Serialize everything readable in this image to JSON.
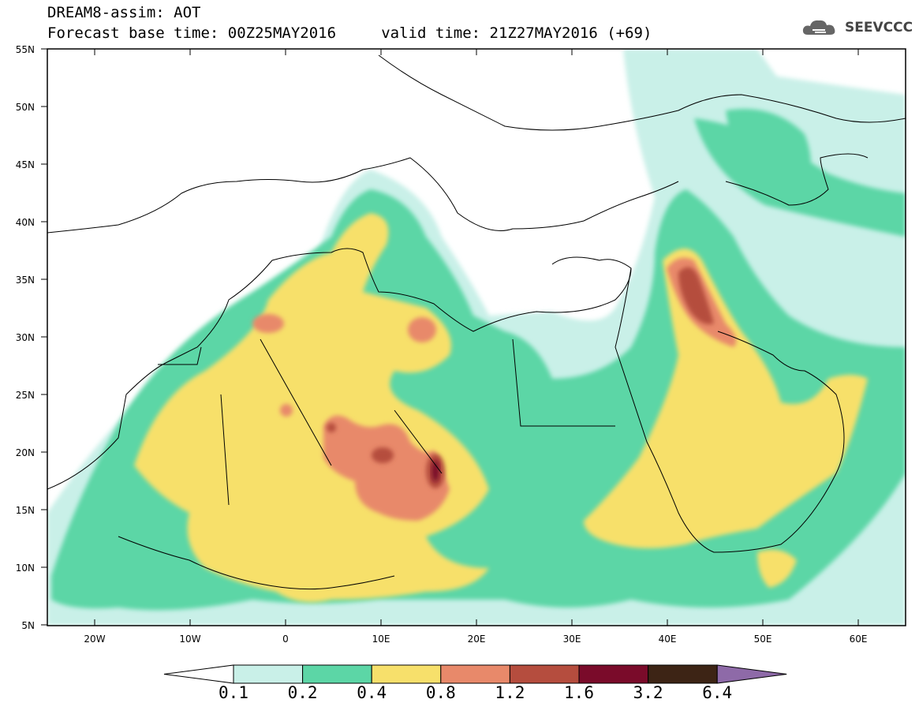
{
  "header": {
    "line1": "DREAM8-assim: AOT",
    "line2": "Forecast base time: 00Z25MAY2016     valid time: 21Z27MAY2016 (+69)"
  },
  "logo": {
    "text": "SEEVCCC",
    "icon": "cloud-icon"
  },
  "map": {
    "lon_range": [
      -25,
      65
    ],
    "lat_range": [
      5,
      55
    ],
    "lat_labels": [
      "55N",
      "50N",
      "45N",
      "40N",
      "35N",
      "30N",
      "25N",
      "20N",
      "15N",
      "10N",
      "5N"
    ],
    "lon_labels": [
      "20W",
      "10W",
      "0",
      "10E",
      "20E",
      "30E",
      "40E",
      "50E",
      "60E"
    ]
  },
  "colorbar": {
    "labels": [
      "0.1",
      "0.2",
      "0.4",
      "0.8",
      "1.2",
      "1.6",
      "3.2",
      "6.4"
    ],
    "colors": [
      "#ffffff",
      "#c9f0e8",
      "#5cd6a6",
      "#f7e06b",
      "#e8896a",
      "#b54d3e",
      "#7a0b2a",
      "#3d2415",
      "#8e6aa8"
    ]
  }
}
